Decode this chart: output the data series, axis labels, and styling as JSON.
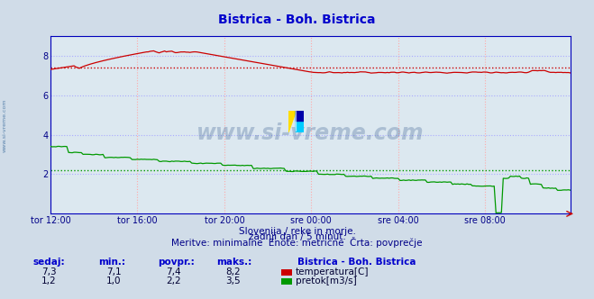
{
  "title": "Bistrica - Boh. Bistrica",
  "background_color": "#d0dce8",
  "plot_bg_color": "#dce8f0",
  "grid_color_v": "#ffaaaa",
  "grid_color_h": "#aaaaff",
  "ylim": [
    0,
    9
  ],
  "yticks": [
    2,
    4,
    6,
    8
  ],
  "x_labels": [
    "tor 12:00",
    "tor 16:00",
    "tor 20:00",
    "sre 00:00",
    "sre 04:00",
    "sre 08:00"
  ],
  "x_ticks_pos": [
    0,
    48,
    96,
    144,
    192,
    240
  ],
  "total_points": 288,
  "temp_color": "#cc0000",
  "flow_color": "#009900",
  "avg_temp": 7.4,
  "avg_flow": 2.2,
  "watermark": "www.si-vreme.com",
  "footer_line1": "Slovenija / reke in morje.",
  "footer_line2": "zadnji dan / 5 minut.",
  "footer_line3": "Meritve: minimalne  Enote: metrične  Črta: povprečje",
  "legend_title": "Bistrica - Boh. Bistrica",
  "legend_items": [
    {
      "label": "temperatura[C]",
      "color": "#cc0000"
    },
    {
      "label": "pretok[m3/s]",
      "color": "#009900"
    }
  ],
  "table_headers": [
    "sedaj:",
    "min.:",
    "povpr.:",
    "maks.:"
  ],
  "table_data": [
    [
      "7,3",
      "7,1",
      "7,4",
      "8,2"
    ],
    [
      "1,2",
      "1,0",
      "2,2",
      "3,5"
    ]
  ]
}
